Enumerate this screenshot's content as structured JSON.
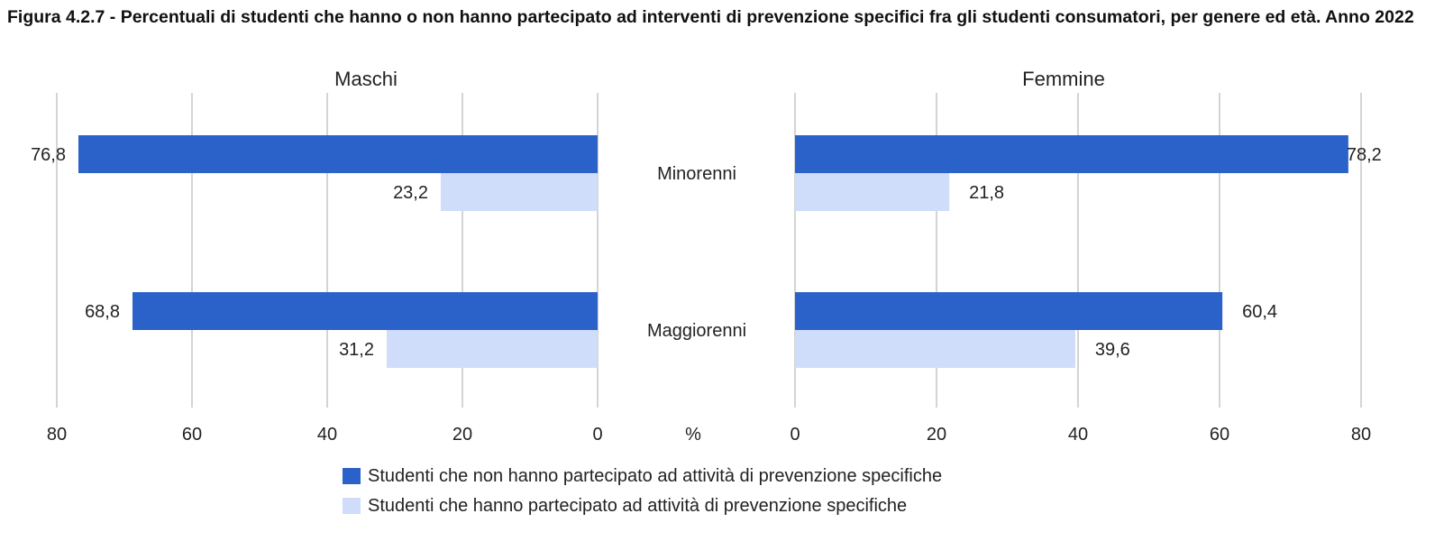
{
  "title": "Figura 4.2.7 - Percentuali di studenti che hanno o non hanno partecipato ad interventi di prevenzione specifici fra gli studenti consumatori, per genere ed età. Anno 2022",
  "colors": {
    "non_partecipato": "#2b62c9",
    "partecipato": "#cfdcfa",
    "grid": "#d4d4d4"
  },
  "legend": {
    "entries": [
      "Studenti che non hanno partecipato ad attività di prevenzione specifiche",
      "Studenti che hanno partecipato ad attività di prevenzione specifiche"
    ]
  },
  "chart_data": {
    "type": "bar",
    "orientation": "horizontal",
    "axis_unit_label": "%",
    "categories": [
      "Minorenni",
      "Maggiorenni"
    ],
    "ticks": [
      0,
      20,
      40,
      60,
      80
    ],
    "xlim": [
      0,
      80
    ],
    "grid": true,
    "legend_position": "bottom",
    "panels": [
      {
        "title": "Maschi",
        "direction": "reversed",
        "series": [
          {
            "name": "Studenti che non hanno partecipato ad attività di prevenzione specifiche",
            "values": [
              76.8,
              68.8
            ],
            "labels": [
              "76,8",
              "68,8"
            ]
          },
          {
            "name": "Studenti che hanno partecipato ad attività di prevenzione specifiche",
            "values": [
              23.2,
              31.2
            ],
            "labels": [
              "23,2",
              "31,2"
            ]
          }
        ]
      },
      {
        "title": "Femmine",
        "direction": "normal",
        "series": [
          {
            "name": "Studenti che non hanno partecipato ad attività di prevenzione specifiche",
            "values": [
              78.2,
              60.4
            ],
            "labels": [
              "78,2",
              "60,4"
            ]
          },
          {
            "name": "Studenti che hanno partecipato ad attività di prevenzione specifiche",
            "values": [
              21.8,
              39.6
            ],
            "labels": [
              "21,8",
              "39,6"
            ]
          }
        ]
      }
    ]
  }
}
